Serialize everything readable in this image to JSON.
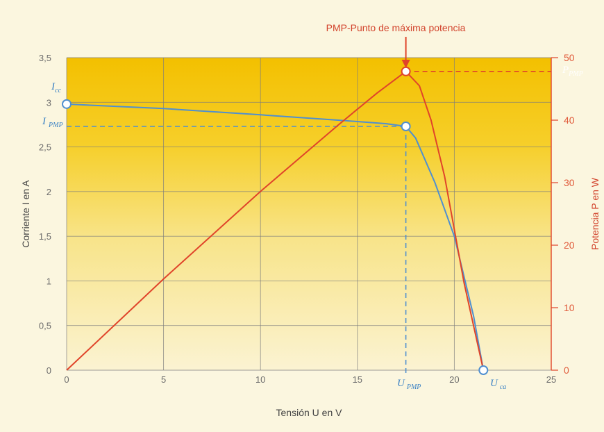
{
  "chart_data": {
    "type": "line",
    "title": "PMP-Punto de máxima potencia",
    "xlabel": "Tensión U en V",
    "ylabel_left": "Corriente I en A",
    "ylabel_right": "Potencia P en W",
    "xlim": [
      0,
      25
    ],
    "ylim_left": [
      0,
      3.5
    ],
    "ylim_right": [
      0,
      50
    ],
    "x_ticks": [
      "0",
      "5",
      "10",
      "15",
      "20",
      "25"
    ],
    "y_left_ticks": [
      "0",
      "0,5",
      "1",
      "1,5",
      "2",
      "2,5",
      "3",
      "3,5"
    ],
    "y_right_ticks": [
      "0",
      "10",
      "20",
      "30",
      "40",
      "50"
    ],
    "grid": true,
    "series": [
      {
        "axis": "left",
        "color": "#4f8fd0",
        "x": [
          0,
          5,
          10,
          14,
          16.5,
          17.5,
          18,
          19,
          20,
          21,
          21.5
        ],
        "y": [
          2.98,
          2.93,
          2.86,
          2.8,
          2.76,
          2.73,
          2.6,
          2.1,
          1.5,
          0.6,
          0
        ]
      },
      {
        "axis": "right",
        "color": "#e0442a",
        "x": [
          0,
          5,
          10,
          14,
          16,
          17.5,
          18.2,
          18.8,
          19.5,
          20.5,
          21.5
        ],
        "y": [
          0,
          14.6,
          28.6,
          39.2,
          44.3,
          47.8,
          45.5,
          40,
          31,
          14,
          0
        ]
      }
    ],
    "points": {
      "isc": {
        "x": 0,
        "y": 2.98
      },
      "impp": {
        "x": 17.5,
        "y": 2.73
      },
      "pmpp": {
        "x": 17.5,
        "y": 47.8
      },
      "uoc": {
        "x": 21.5,
        "y": 0
      }
    },
    "annotations": {
      "pmp_label": "PMP-Punto de máxima potencia",
      "isc_main": "I",
      "isc_sub": "cc",
      "impp_main": "I",
      "impp_sub": "PMP",
      "pmpp_main": "P",
      "pmpp_sub": "PMP",
      "umpp_main": "U",
      "umpp_sub": "PMP",
      "uoc_main": "U",
      "uoc_sub": "ca"
    }
  }
}
